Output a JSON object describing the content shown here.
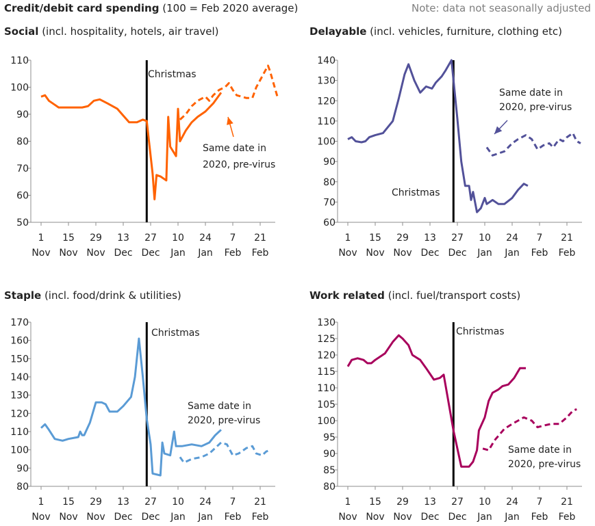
{
  "header": {
    "title_bold": "Credit/debit card spending",
    "title_rest": "(100 = Feb 2020 average)",
    "note": "Note: data not seasonally adjusted"
  },
  "x_ticks": [
    {
      "day": 1,
      "top": "1",
      "bottom": "Nov"
    },
    {
      "day": 15,
      "top": "15",
      "bottom": "Nov"
    },
    {
      "day": 29,
      "top": "29",
      "bottom": "Nov"
    },
    {
      "day": 43,
      "top": "13",
      "bottom": "Dec"
    },
    {
      "day": 57,
      "top": "27",
      "bottom": "Dec"
    },
    {
      "day": 71,
      "top": "10",
      "bottom": "Jan"
    },
    {
      "day": 85,
      "top": "24",
      "bottom": "Jan"
    },
    {
      "day": 99,
      "top": "7",
      "bottom": "Feb"
    },
    {
      "day": 113,
      "top": "21",
      "bottom": "Feb"
    }
  ],
  "chart_data": [
    {
      "type": "line",
      "title": "Social",
      "subtitle": "(incl. hospitality, hotels, air travel)",
      "color": "#ff6200",
      "x_range": [
        "2020-11-01",
        "2021-02-28"
      ],
      "ylim": [
        50,
        110
      ],
      "yticks": [
        50,
        60,
        70,
        80,
        90,
        100,
        110
      ],
      "marker": {
        "date": "2020-12-25",
        "label": "Christmas"
      },
      "annotation": "Same date in 2020, pre-virus",
      "series": [
        {
          "style": "solid",
          "points": [
            [
              "2020-11-01",
              96.5
            ],
            [
              "2020-11-03",
              97
            ],
            [
              "2020-11-05",
              95
            ],
            [
              "2020-11-08",
              93.5
            ],
            [
              "2020-11-10",
              92.5
            ],
            [
              "2020-11-13",
              92.5
            ],
            [
              "2020-11-15",
              92.5
            ],
            [
              "2020-11-18",
              92.5
            ],
            [
              "2020-11-22",
              92.5
            ],
            [
              "2020-11-25",
              93
            ],
            [
              "2020-11-28",
              95
            ],
            [
              "2020-12-01",
              95.5
            ],
            [
              "2020-12-05",
              94
            ],
            [
              "2020-12-10",
              92
            ],
            [
              "2020-12-13",
              89.5
            ],
            [
              "2020-12-16",
              87
            ],
            [
              "2020-12-20",
              87
            ],
            [
              "2020-12-23",
              88
            ],
            [
              "2020-12-25",
              87.5
            ],
            [
              "2020-12-28",
              68
            ],
            [
              "2020-12-29",
              58.5
            ],
            [
              "2020-12-30",
              67.5
            ],
            [
              "2021-01-01",
              67
            ],
            [
              "2021-01-04",
              65.5
            ],
            [
              "2021-01-05",
              89
            ],
            [
              "2021-01-06",
              78
            ],
            [
              "2021-01-09",
              74.5
            ],
            [
              "2021-01-10",
              92
            ],
            [
              "2021-01-11",
              80
            ],
            [
              "2021-01-14",
              84
            ],
            [
              "2021-01-17",
              87
            ],
            [
              "2021-01-20",
              89
            ],
            [
              "2021-01-24",
              91
            ],
            [
              "2021-01-28",
              94
            ],
            [
              "2021-02-01",
              98
            ]
          ]
        },
        {
          "style": "dashed",
          "points": [
            [
              "2021-01-11",
              88
            ],
            [
              "2021-01-14",
              90
            ],
            [
              "2021-01-17",
              93
            ],
            [
              "2021-01-20",
              95
            ],
            [
              "2021-01-24",
              96.5
            ],
            [
              "2021-01-26",
              95
            ],
            [
              "2021-01-28",
              97
            ],
            [
              "2021-01-31",
              99
            ],
            [
              "2021-02-03",
              100
            ],
            [
              "2021-02-05",
              101.5
            ],
            [
              "2021-02-07",
              99
            ],
            [
              "2021-02-09",
              97
            ],
            [
              "2021-02-14",
              96
            ],
            [
              "2021-02-17",
              96
            ],
            [
              "2021-02-19",
              100
            ],
            [
              "2021-02-22",
              104
            ],
            [
              "2021-02-25",
              108
            ],
            [
              "2021-02-26",
              106
            ],
            [
              "2021-02-28",
              101
            ],
            [
              "2021-03-02",
              96
            ]
          ]
        }
      ]
    },
    {
      "type": "line",
      "title": "Delayable",
      "subtitle": "(incl. vehicles, furniture, clothing etc)",
      "color": "#525199",
      "x_range": [
        "2020-11-01",
        "2021-02-28"
      ],
      "ylim": [
        60,
        140
      ],
      "yticks": [
        60,
        70,
        80,
        90,
        100,
        110,
        120,
        130,
        140
      ],
      "marker": {
        "date": "2020-12-25",
        "label": "Christmas"
      },
      "annotation": "Same date in 2020, pre-virus",
      "series": [
        {
          "style": "solid",
          "points": [
            [
              "2020-11-01",
              101
            ],
            [
              "2020-11-03",
              102
            ],
            [
              "2020-11-05",
              100
            ],
            [
              "2020-11-08",
              99.5
            ],
            [
              "2020-11-10",
              100
            ],
            [
              "2020-11-12",
              102
            ],
            [
              "2020-11-15",
              103
            ],
            [
              "2020-11-19",
              104
            ],
            [
              "2020-11-24",
              110
            ],
            [
              "2020-11-27",
              121
            ],
            [
              "2020-11-30",
              133
            ],
            [
              "2020-12-02",
              138
            ],
            [
              "2020-12-05",
              130
            ],
            [
              "2020-12-08",
              124
            ],
            [
              "2020-12-11",
              127
            ],
            [
              "2020-12-14",
              126
            ],
            [
              "2020-12-16",
              129
            ],
            [
              "2020-12-19",
              132
            ],
            [
              "2020-12-21",
              135
            ],
            [
              "2020-12-24",
              140
            ],
            [
              "2020-12-27",
              111
            ],
            [
              "2020-12-29",
              90
            ],
            [
              "2020-12-31",
              78
            ],
            [
              "2021-01-02",
              78
            ],
            [
              "2021-01-03",
              71
            ],
            [
              "2021-01-04",
              75
            ],
            [
              "2021-01-06",
              65
            ],
            [
              "2021-01-08",
              67
            ],
            [
              "2021-01-10",
              72
            ],
            [
              "2021-01-11",
              69
            ],
            [
              "2021-01-14",
              71
            ],
            [
              "2021-01-17",
              69
            ],
            [
              "2021-01-20",
              69
            ],
            [
              "2021-01-24",
              72
            ],
            [
              "2021-01-27",
              76
            ],
            [
              "2021-01-30",
              79
            ],
            [
              "2021-02-01",
              78
            ]
          ]
        },
        {
          "style": "dashed",
          "points": [
            [
              "2021-01-11",
              97
            ],
            [
              "2021-01-14",
              93
            ],
            [
              "2021-01-17",
              94
            ],
            [
              "2021-01-20",
              95
            ],
            [
              "2021-01-24",
              99
            ],
            [
              "2021-01-27",
              101
            ],
            [
              "2021-01-31",
              103
            ],
            [
              "2021-02-03",
              101
            ],
            [
              "2021-02-06",
              96
            ],
            [
              "2021-02-09",
              98
            ],
            [
              "2021-02-12",
              99
            ],
            [
              "2021-02-14",
              97
            ],
            [
              "2021-02-17",
              101
            ],
            [
              "2021-02-19",
              100
            ],
            [
              "2021-02-21",
              102
            ],
            [
              "2021-02-24",
              104
            ],
            [
              "2021-02-26",
              100
            ],
            [
              "2021-02-28",
              99
            ]
          ]
        }
      ]
    },
    {
      "type": "line",
      "title": "Staple",
      "subtitle": "(incl. food/drink & utilities)",
      "color": "#5a9bd5",
      "x_range": [
        "2020-11-01",
        "2021-02-28"
      ],
      "ylim": [
        80,
        170
      ],
      "yticks": [
        80,
        90,
        100,
        110,
        120,
        130,
        140,
        150,
        160,
        170
      ],
      "marker": {
        "date": "2020-12-25",
        "label": "Christmas"
      },
      "annotation": "Same date in 2020, pre-virus",
      "series": [
        {
          "style": "solid",
          "points": [
            [
              "2020-11-01",
              112
            ],
            [
              "2020-11-03",
              114
            ],
            [
              "2020-11-05",
              111
            ],
            [
              "2020-11-08",
              106
            ],
            [
              "2020-11-12",
              105
            ],
            [
              "2020-11-15",
              106
            ],
            [
              "2020-11-20",
              107
            ],
            [
              "2020-11-21",
              110
            ],
            [
              "2020-11-22",
              108
            ],
            [
              "2020-11-23",
              108
            ],
            [
              "2020-11-26",
              115
            ],
            [
              "2020-11-29",
              126
            ],
            [
              "2020-12-02",
              126
            ],
            [
              "2020-12-04",
              125
            ],
            [
              "2020-12-06",
              121
            ],
            [
              "2020-12-10",
              121
            ],
            [
              "2020-12-13",
              124
            ],
            [
              "2020-12-17",
              129
            ],
            [
              "2020-12-19",
              140
            ],
            [
              "2020-12-21",
              161
            ],
            [
              "2020-12-23",
              140
            ],
            [
              "2020-12-25",
              117
            ],
            [
              "2020-12-27",
              103
            ],
            [
              "2020-12-28",
              87
            ],
            [
              "2021-01-01",
              86
            ],
            [
              "2021-01-02",
              104
            ],
            [
              "2021-01-03",
              98
            ],
            [
              "2021-01-06",
              97
            ],
            [
              "2021-01-08",
              110
            ],
            [
              "2021-01-09",
              102
            ],
            [
              "2021-01-12",
              102
            ],
            [
              "2021-01-17",
              103
            ],
            [
              "2021-01-22",
              102
            ],
            [
              "2021-01-26",
              104
            ],
            [
              "2021-01-29",
              108
            ],
            [
              "2021-02-01",
              111
            ]
          ]
        },
        {
          "style": "dashed",
          "points": [
            [
              "2021-01-11",
              96
            ],
            [
              "2021-01-13",
              93
            ],
            [
              "2021-01-17",
              95
            ],
            [
              "2021-01-22",
              96
            ],
            [
              "2021-01-26",
              98
            ],
            [
              "2021-01-29",
              101
            ],
            [
              "2021-02-01",
              104
            ],
            [
              "2021-02-04",
              103
            ],
            [
              "2021-02-07",
              97
            ],
            [
              "2021-02-10",
              98
            ],
            [
              "2021-02-14",
              101
            ],
            [
              "2021-02-17",
              102
            ],
            [
              "2021-02-19",
              98
            ],
            [
              "2021-02-22",
              97
            ],
            [
              "2021-02-24",
              99
            ],
            [
              "2021-02-26",
              100
            ]
          ]
        }
      ]
    },
    {
      "type": "line",
      "title": "Work related",
      "subtitle": "(incl. fuel/transport costs)",
      "color": "#a8005c",
      "x_range": [
        "2020-11-01",
        "2021-02-28"
      ],
      "ylim": [
        80,
        130
      ],
      "yticks": [
        80,
        85,
        90,
        95,
        100,
        105,
        110,
        115,
        120,
        125,
        130
      ],
      "marker": {
        "date": "2020-12-25",
        "label": "Christmas"
      },
      "annotation": "Same date in 2020, pre-virus",
      "series": [
        {
          "style": "solid",
          "points": [
            [
              "2020-11-01",
              116.5
            ],
            [
              "2020-11-03",
              118.5
            ],
            [
              "2020-11-06",
              119
            ],
            [
              "2020-11-09",
              118.5
            ],
            [
              "2020-11-11",
              117.5
            ],
            [
              "2020-11-13",
              117.5
            ],
            [
              "2020-11-15",
              118.5
            ],
            [
              "2020-11-20",
              120.5
            ],
            [
              "2020-11-24",
              124
            ],
            [
              "2020-11-27",
              126
            ],
            [
              "2020-11-29",
              125
            ],
            [
              "2020-12-02",
              123
            ],
            [
              "2020-12-04",
              120
            ],
            [
              "2020-12-08",
              118.5
            ],
            [
              "2020-12-11",
              116
            ],
            [
              "2020-12-15",
              112.5
            ],
            [
              "2020-12-18",
              113
            ],
            [
              "2020-12-20",
              114
            ],
            [
              "2020-12-25",
              97
            ],
            [
              "2020-12-29",
              86
            ],
            [
              "2021-01-02",
              86
            ],
            [
              "2021-01-04",
              87.5
            ],
            [
              "2021-01-06",
              91
            ],
            [
              "2021-01-07",
              97
            ],
            [
              "2021-01-10",
              101
            ],
            [
              "2021-01-12",
              106
            ],
            [
              "2021-01-14",
              108.5
            ],
            [
              "2021-01-17",
              109.5
            ],
            [
              "2021-01-19",
              110.5
            ],
            [
              "2021-01-22",
              111
            ],
            [
              "2021-01-25",
              113
            ],
            [
              "2021-01-28",
              116
            ],
            [
              "2021-01-31",
              116
            ]
          ]
        },
        {
          "style": "dashed",
          "points": [
            [
              "2021-01-09",
              91.5
            ],
            [
              "2021-01-12",
              91
            ],
            [
              "2021-01-15",
              94
            ],
            [
              "2021-01-20",
              97.5
            ],
            [
              "2021-01-24",
              99
            ],
            [
              "2021-01-27",
              100
            ],
            [
              "2021-01-30",
              101
            ],
            [
              "2021-02-03",
              100
            ],
            [
              "2021-02-06",
              98
            ],
            [
              "2021-02-09",
              98.5
            ],
            [
              "2021-02-13",
              99
            ],
            [
              "2021-02-17",
              99
            ],
            [
              "2021-02-21",
              101
            ],
            [
              "2021-02-24",
              103
            ],
            [
              "2021-02-26",
              103.5
            ]
          ]
        }
      ]
    }
  ]
}
